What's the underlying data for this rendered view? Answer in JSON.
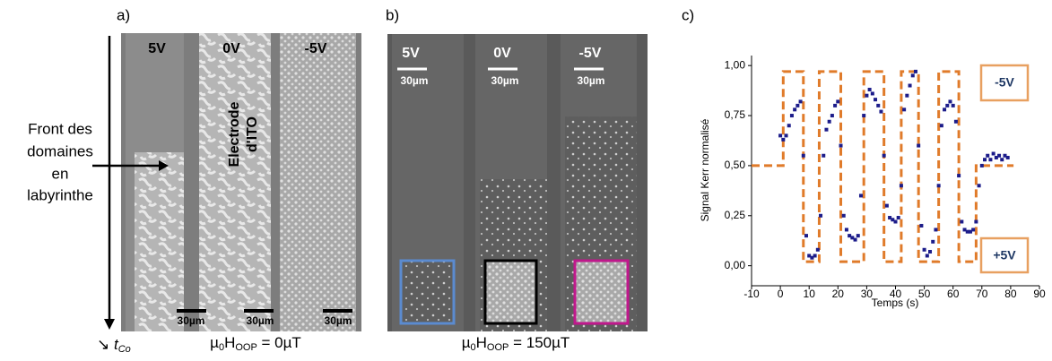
{
  "panel_a": {
    "label": "a)",
    "voltages": [
      "5V",
      "0V",
      "-5V"
    ],
    "scale_labels": [
      "30µm",
      "30µm",
      "30µm"
    ],
    "annotation_lines": [
      "Front des",
      "domaines",
      "en",
      "labyrinthe"
    ],
    "electrode_lines": [
      "Electrode",
      "d'ITO"
    ],
    "time_axis": {
      "arrow": "↘",
      "symbol": "t",
      "subscript": "Co"
    },
    "field": {
      "symbol": "µ",
      "symbol_sub": "0",
      "quantity": "H",
      "quantity_sub": "OOP",
      "value": " = 0µT"
    }
  },
  "panel_b": {
    "label": "b)",
    "voltages": [
      "5V",
      "0V",
      "-5V"
    ],
    "scale_labels": [
      "30µm",
      "30µm",
      "30µm"
    ],
    "field": {
      "symbol": "µ",
      "symbol_sub": "0",
      "quantity": "H",
      "quantity_sub": "OOP",
      "value": " = 150µT"
    }
  },
  "chart_data": {
    "type": "scatter",
    "panel_label": "c)",
    "x_label": "Temps (s)",
    "y_label": "Signal Kerr normalisé",
    "annotations": [
      "-5V",
      "+5V"
    ],
    "xlim": [
      -10,
      90
    ],
    "ylim": [
      -0.1,
      1.05
    ],
    "xticks": [
      -10,
      0,
      10,
      20,
      30,
      40,
      50,
      60,
      70,
      80,
      90
    ],
    "yticks": [
      {
        "value": 0,
        "label": "0,00"
      },
      {
        "value": 0.25,
        "label": "0,25"
      },
      {
        "value": 0.5,
        "label": "0,50"
      },
      {
        "value": 0.75,
        "label": "0,75"
      },
      {
        "value": 1,
        "label": "1,00"
      }
    ],
    "series": [
      {
        "type": "scatter",
        "color": "#1c1c8a",
        "x": [
          0,
          1,
          2,
          3,
          4,
          5,
          6,
          7,
          8,
          9,
          10,
          11,
          12,
          13,
          14,
          15,
          16,
          17,
          18,
          19,
          20,
          21,
          22,
          23,
          24,
          25,
          26,
          27,
          28,
          29,
          30,
          31,
          32,
          33,
          34,
          35,
          36,
          37,
          38,
          39,
          40,
          41,
          42,
          43,
          44,
          45,
          46,
          47,
          48,
          49,
          50,
          51,
          52,
          53,
          54,
          55,
          56,
          57,
          58,
          59,
          60,
          61,
          62,
          63,
          64,
          65,
          66,
          67,
          68,
          69,
          70,
          71,
          72,
          73,
          74,
          75,
          76,
          77,
          78,
          79
        ],
        "values": [
          0.65,
          0.63,
          0.65,
          0.7,
          0.75,
          0.78,
          0.8,
          0.82,
          0.55,
          0.15,
          0.05,
          0.04,
          0.05,
          0.08,
          0.25,
          0.55,
          0.68,
          0.72,
          0.75,
          0.8,
          0.82,
          0.6,
          0.25,
          0.18,
          0.15,
          0.14,
          0.13,
          0.15,
          0.35,
          0.75,
          0.85,
          0.88,
          0.86,
          0.83,
          0.8,
          0.77,
          0.55,
          0.3,
          0.24,
          0.23,
          0.22,
          0.24,
          0.4,
          0.78,
          0.85,
          0.9,
          0.95,
          0.97,
          0.6,
          0.2,
          0.08,
          0.05,
          0.07,
          0.12,
          0.18,
          0.4,
          0.7,
          0.78,
          0.8,
          0.82,
          0.8,
          0.72,
          0.45,
          0.22,
          0.18,
          0.17,
          0.17,
          0.18,
          0.22,
          0.4,
          0.5,
          0.53,
          0.55,
          0.53,
          0.56,
          0.54,
          0.55,
          0.53,
          0.55,
          0.54
        ]
      },
      {
        "type": "line",
        "dashed": true,
        "color": "#e07b2a",
        "x": [
          -10,
          1,
          1,
          8,
          8,
          13.5,
          13.5,
          21,
          21,
          29,
          29,
          36,
          36,
          42,
          42,
          48,
          48,
          55,
          55,
          62,
          62,
          68,
          68,
          81
        ],
        "values": [
          0.5,
          0.5,
          0.97,
          0.97,
          0.02,
          0.02,
          0.97,
          0.97,
          0.02,
          0.02,
          0.97,
          0.97,
          0.02,
          0.02,
          0.97,
          0.97,
          0.02,
          0.02,
          0.97,
          0.97,
          0.02,
          0.02,
          0.5,
          0.5
        ]
      }
    ]
  }
}
